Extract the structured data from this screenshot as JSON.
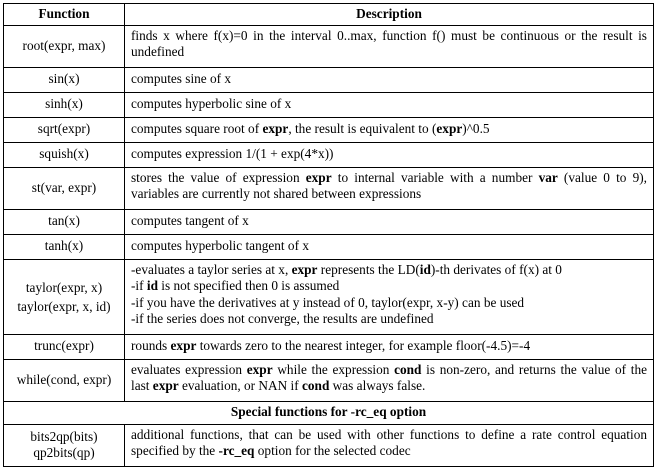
{
  "header": {
    "function": "Function",
    "description": "Description"
  },
  "rows": [
    {
      "fn": "root(expr, max)",
      "desc": "finds x where f(x)=0 in the interval 0..max, function f() must be continuous or the result is undefined"
    },
    {
      "fn": "sin(x)",
      "desc": "computes sine of x"
    },
    {
      "fn": "sinh(x)",
      "desc": "computes hyperbolic sine of x"
    },
    {
      "fn": "sqrt(expr)",
      "desc": [
        "computes square root of ",
        "expr",
        ", the result is equivalent to (",
        "expr",
        ")^0.5"
      ]
    },
    {
      "fn": "squish(x)",
      "desc": "computes expression 1/(1 + exp(4*x))"
    },
    {
      "fn": "st(var, expr)",
      "desc": [
        "stores the value of expression ",
        "expr",
        " to internal variable with a number ",
        "var",
        " (value 0 to 9), variables are currently not shared between expressions"
      ]
    },
    {
      "fn": "tan(x)",
      "desc": "computes tangent of x"
    },
    {
      "fn": "tanh(x)",
      "desc": "computes hyperbolic tangent of x"
    },
    {
      "fn": [
        "taylor(expr, x)",
        "taylor(expr, x, id)"
      ],
      "desc_lines": [
        [
          "-evaluates a taylor series at x, ",
          "expr",
          " represents the LD(",
          "id",
          ")-th derivates of f(x) at 0"
        ],
        [
          "-if ",
          "id",
          " is not specified then 0 is assumed"
        ],
        [
          "-if you have the derivatives at y instead of 0, taylor(expr, x-y) can be used"
        ],
        [
          "-if the series does not converge, the results are undefined"
        ]
      ]
    },
    {
      "fn": "trunc(expr)",
      "desc": [
        "rounds ",
        "expr",
        " towards zero to the nearest integer, for example floor(-4.5)=-4"
      ]
    },
    {
      "fn": "while(cond, expr)",
      "desc": [
        "evaluates expression ",
        "expr",
        " while the expression ",
        "cond",
        " is non-zero, and returns the value of the last ",
        "expr",
        " evaluation, or NAN if ",
        "cond",
        " was always false."
      ]
    }
  ],
  "section": {
    "title": "Special functions for -rc_eq option"
  },
  "special": {
    "fn": [
      "bits2qp(bits)",
      "qp2bits(qp)"
    ],
    "desc": [
      "additional functions, that can be used with other functions to define a rate control equation specified by the ",
      "-rc_eq",
      " option for the selected codec"
    ]
  }
}
